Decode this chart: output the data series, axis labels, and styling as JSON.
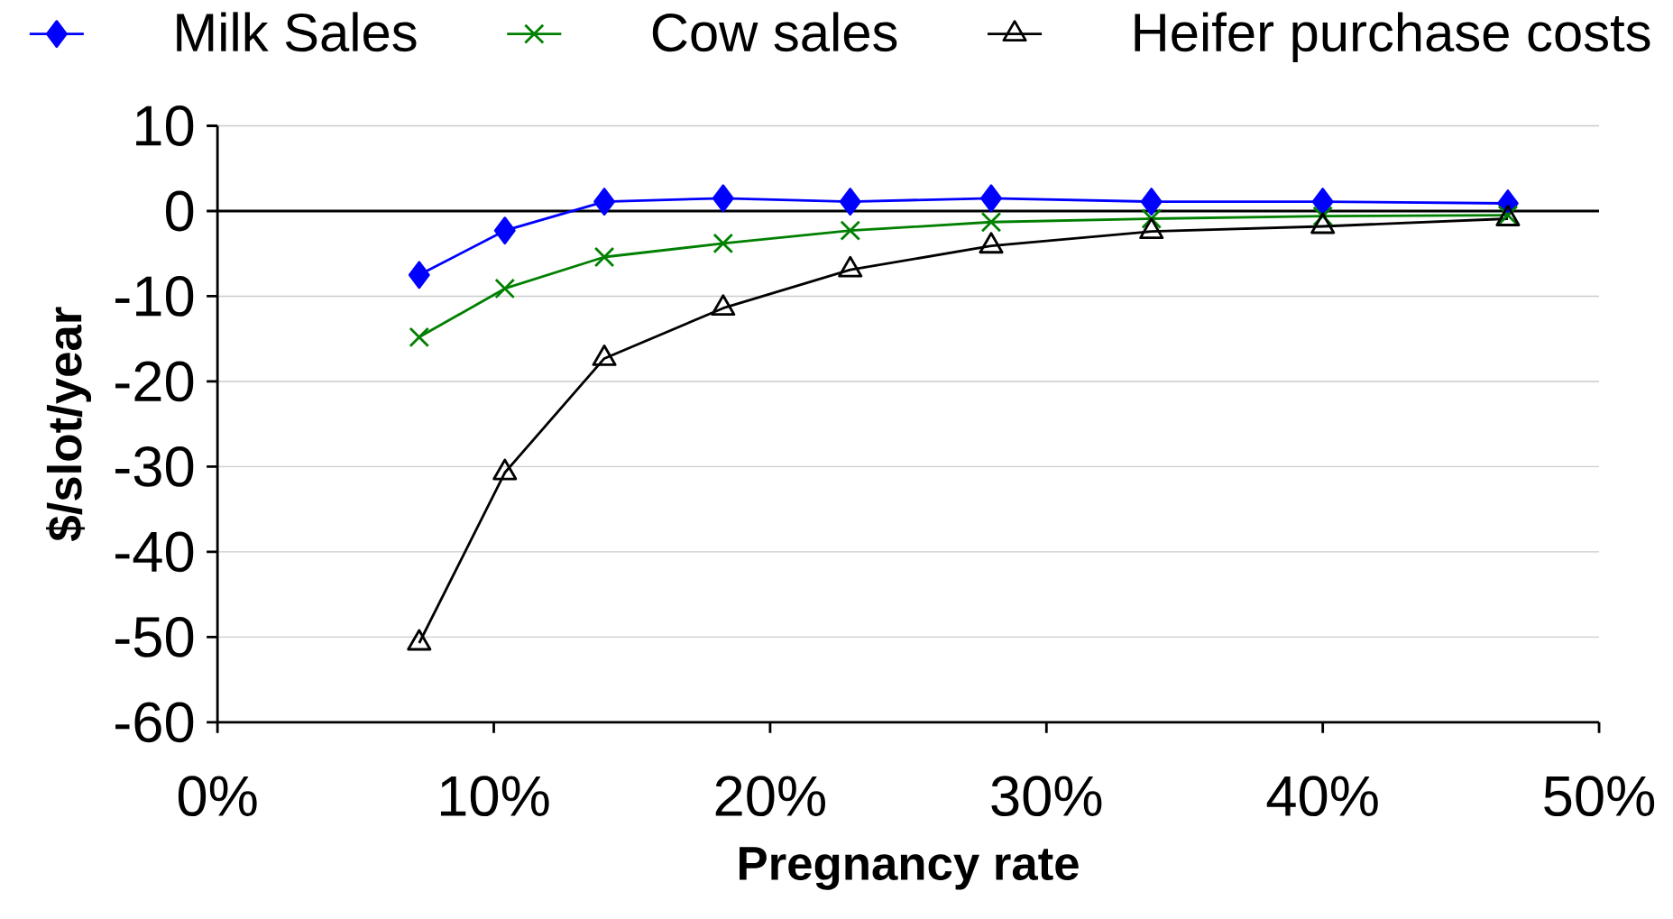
{
  "chart_data": {
    "type": "line",
    "xlabel": "Pregnancy rate",
    "ylabel": "$/slot/year",
    "x": [
      7.3,
      10.4,
      14.0,
      18.3,
      22.9,
      28.0,
      33.8,
      40.0,
      46.7
    ],
    "series": [
      {
        "name": "Milk Sales",
        "color": "#0000ff",
        "marker": "diamond",
        "values": [
          -7.5,
          -2.3,
          1.1,
          1.5,
          1.1,
          1.5,
          1.1,
          1.1,
          0.9
        ]
      },
      {
        "name": "Cow sales",
        "color": "#008000",
        "marker": "cross",
        "values": [
          -14.8,
          -9.1,
          -5.4,
          -3.8,
          -2.3,
          -1.3,
          -0.9,
          -0.6,
          -0.5
        ]
      },
      {
        "name": "Heifer purchase costs",
        "color": "#000000",
        "marker": "triangle",
        "values": [
          -50.7,
          -30.7,
          -17.3,
          -11.4,
          -6.9,
          -4.1,
          -2.4,
          -1.8,
          -0.9
        ]
      }
    ],
    "xlim": [
      0,
      50
    ],
    "xticks": [
      {
        "value": 0,
        "label": "0%"
      },
      {
        "value": 10,
        "label": "10%"
      },
      {
        "value": 20,
        "label": "20%"
      },
      {
        "value": 30,
        "label": "30%"
      },
      {
        "value": 40,
        "label": "40%"
      },
      {
        "value": 50,
        "label": "50%"
      }
    ],
    "ylim": [
      -60,
      10
    ],
    "yticks": [
      -60,
      -50,
      -40,
      -30,
      -20,
      -10,
      0,
      10
    ],
    "ref_lines": [
      {
        "axis": "y",
        "value": 0,
        "color": "#000000"
      }
    ],
    "grid": "y",
    "legend": "top",
    "line_style": "solid"
  }
}
